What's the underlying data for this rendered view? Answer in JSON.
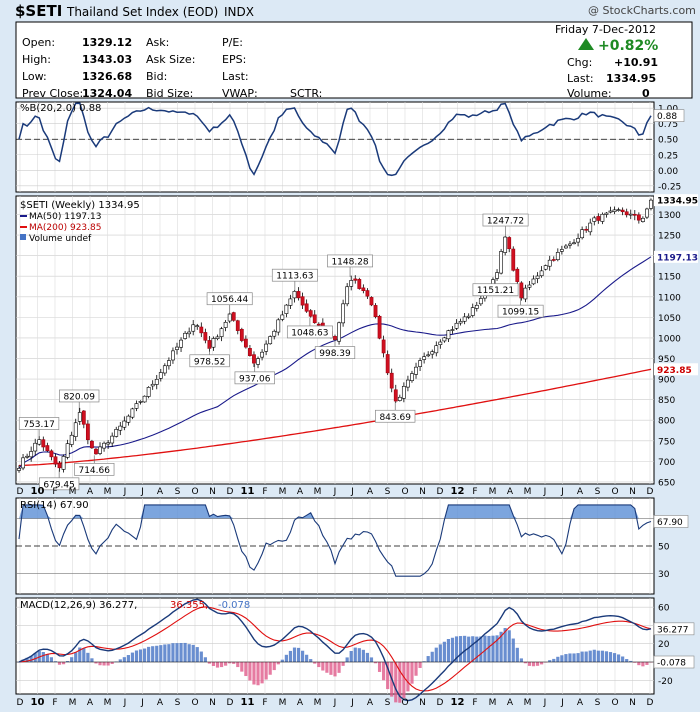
{
  "header": {
    "symbol": "$SETI",
    "name": "Thailand Set Index (EOD)",
    "exchange": "INDX",
    "watermark": "@ StockCharts.com",
    "date": "Friday  7-Dec-2012",
    "change_pct": "+0.82%",
    "colors": {
      "up": "#1e8a23",
      "panel_bg": "#dce9f5"
    }
  },
  "quote": {
    "open_label": "Open:",
    "open": "1329.12",
    "high_label": "High:",
    "high": "1343.03",
    "low_label": "Low:",
    "low": "1326.68",
    "prev_label": "Prev Close:",
    "prev": "1324.04",
    "ask_label": "Ask:",
    "ask_size_label": "Ask Size:",
    "bid_label": "Bid:",
    "bid_size_label": "Bid Size:",
    "pe_label": "P/E:",
    "eps_label": "EPS:",
    "last_label2": "Last:",
    "vwap_label": "VWAP:",
    "sctr_label": "SCTR:",
    "chg_label": "Chg:",
    "chg": "+10.91",
    "last_label": "Last:",
    "last": "1334.95",
    "volume_label": "Volume:",
    "volume": "0"
  },
  "pb_panel": {
    "legend": "%B(20,2.0) 0.88",
    "ticks": [
      "1.00",
      "0.75",
      "0.50",
      "0.25",
      "0.00",
      "-0.25"
    ],
    "tick_values": [
      1.0,
      0.75,
      0.5,
      0.25,
      0.0,
      -0.25
    ],
    "current_label": "0.88",
    "current": 0.88
  },
  "price_panel": {
    "legend_title": "$SETI (Weekly) 1334.95",
    "legend_ma50": "MA(50) 1197.13",
    "legend_ma200": "MA(200) 923.85",
    "legend_volume": "Volume undef",
    "ticks": [
      "1300",
      "1250",
      "1200",
      "1150",
      "1100",
      "1050",
      "1000",
      "950",
      "900",
      "850",
      "800",
      "750",
      "700",
      "650"
    ],
    "tick_values": [
      1300,
      1250,
      1200,
      1150,
      1100,
      1050,
      1000,
      950,
      900,
      850,
      800,
      750,
      700,
      650
    ],
    "last_label": "1334.95",
    "ma50_label": "1197.13",
    "ma200_label": "923.85",
    "annotations": [
      {
        "text": "753.17",
        "week": 4,
        "value": 753.17,
        "pos": "above"
      },
      {
        "text": "679.45",
        "week": 8,
        "value": 679.45,
        "pos": "below"
      },
      {
        "text": "820.09",
        "week": 12,
        "value": 820.09,
        "pos": "above"
      },
      {
        "text": "714.66",
        "week": 15,
        "value": 714.66,
        "pos": "below"
      },
      {
        "text": "1056.44",
        "week": 42,
        "value": 1056.44,
        "pos": "above"
      },
      {
        "text": "978.52",
        "week": 38,
        "value": 978.52,
        "pos": "below"
      },
      {
        "text": "937.06",
        "week": 47,
        "value": 937.06,
        "pos": "below"
      },
      {
        "text": "1113.63",
        "week": 55,
        "value": 1113.63,
        "pos": "above"
      },
      {
        "text": "1048.63",
        "week": 58,
        "value": 1048.63,
        "pos": "below"
      },
      {
        "text": "998.39",
        "week": 63,
        "value": 998.39,
        "pos": "below"
      },
      {
        "text": "1148.28",
        "week": 66,
        "value": 1148.28,
        "pos": "above"
      },
      {
        "text": "843.69",
        "week": 75,
        "value": 843.69,
        "pos": "below"
      },
      {
        "text": "1247.72",
        "week": 97,
        "value": 1247.72,
        "pos": "above"
      },
      {
        "text": "1151.21",
        "week": 95,
        "value": 1151.21,
        "pos": "below"
      },
      {
        "text": "1099.15",
        "week": 100,
        "value": 1099.15,
        "pos": "below"
      }
    ]
  },
  "rsi_panel": {
    "legend": "RSI(14) 67.90",
    "ticks": [
      "70",
      "50",
      "30"
    ],
    "tick_values": [
      70,
      50,
      30
    ],
    "current_label": "67.90",
    "current": 67.9
  },
  "macd_panel": {
    "legend_main": "MACD(12,26,9) 36.277,",
    "legend_signal": "36.355,",
    "legend_hist": "-0.078",
    "ticks": [
      "60",
      "40",
      "20",
      "0",
      "-20"
    ],
    "tick_values": [
      60,
      40,
      20,
      0,
      -20
    ],
    "current_label": "36.277",
    "hist_label": "-0.078"
  },
  "x_axis": {
    "labels": [
      "D",
      "10",
      "F",
      "M",
      "A",
      "M",
      "J",
      "J",
      "A",
      "S",
      "O",
      "N",
      "D",
      "11",
      "F",
      "M",
      "A",
      "M",
      "J",
      "J",
      "A",
      "S",
      "O",
      "N",
      "D",
      "12",
      "F",
      "M",
      "A",
      "M",
      "J",
      "J",
      "A",
      "S",
      "O",
      "N",
      "D"
    ],
    "bold": [
      "10",
      "11",
      "12"
    ]
  },
  "chart_data": {
    "type": "line",
    "title": "$SETI (Weekly) 1334.95",
    "period": "weekly, Dec-2009 to Dec-2012",
    "series": [
      {
        "name": "$SETI",
        "week_index": [
          0,
          4,
          8,
          12,
          15,
          20,
          25,
          30,
          35,
          38,
          42,
          47,
          50,
          55,
          58,
          63,
          66,
          70,
          75,
          80,
          85,
          90,
          95,
          97,
          100,
          105,
          110,
          115,
          120,
          124,
          126
        ],
        "values": [
          690,
          753,
          679,
          820,
          714,
          780,
          860,
          950,
          1040,
          978,
          1056,
          937,
          1000,
          1113,
          1048,
          998,
          1148,
          1100,
          843,
          940,
          1010,
          1060,
          1151,
          1247,
          1099,
          1180,
          1230,
          1290,
          1310,
          1285,
          1335
        ]
      },
      {
        "name": "MA(50)",
        "last": 1197.13
      },
      {
        "name": "MA(200)",
        "last": 923.85
      }
    ],
    "ylim": [
      650,
      1340
    ]
  }
}
